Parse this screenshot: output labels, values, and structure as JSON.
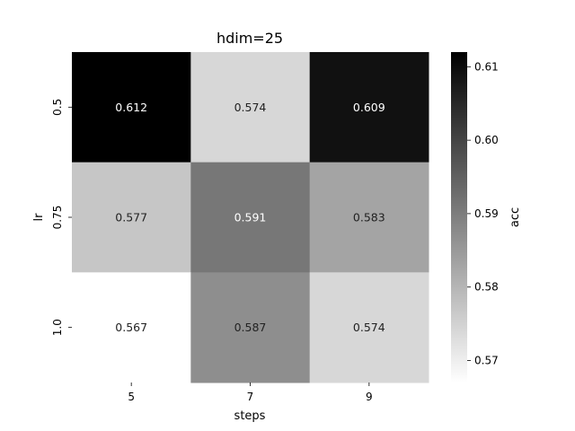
{
  "chart_data": {
    "type": "heatmap",
    "title": "hdim=25",
    "xlabel": "steps",
    "ylabel": "lr",
    "x_categories": [
      "5",
      "7",
      "9"
    ],
    "y_categories": [
      "0.5",
      "0.75",
      "1.0"
    ],
    "values": [
      [
        0.612,
        0.574,
        0.609
      ],
      [
        0.577,
        0.591,
        0.583
      ],
      [
        0.567,
        0.587,
        0.574
      ]
    ],
    "cell_labels": [
      [
        "0.612",
        "0.574",
        "0.609"
      ],
      [
        "0.577",
        "0.591",
        "0.583"
      ],
      [
        "0.567",
        "0.587",
        "0.574"
      ]
    ],
    "colorbar": {
      "label": "acc",
      "vmin": 0.567,
      "vmax": 0.612,
      "ticks": [
        0.57,
        0.58,
        0.59,
        0.6,
        0.61
      ],
      "tick_labels": [
        "0.57",
        "0.58",
        "0.59",
        "0.60",
        "0.61"
      ],
      "colormap": "Greys",
      "color_low": "#ffffff",
      "color_high": "#000000"
    },
    "grid": false,
    "legend": "colorbar-right"
  }
}
